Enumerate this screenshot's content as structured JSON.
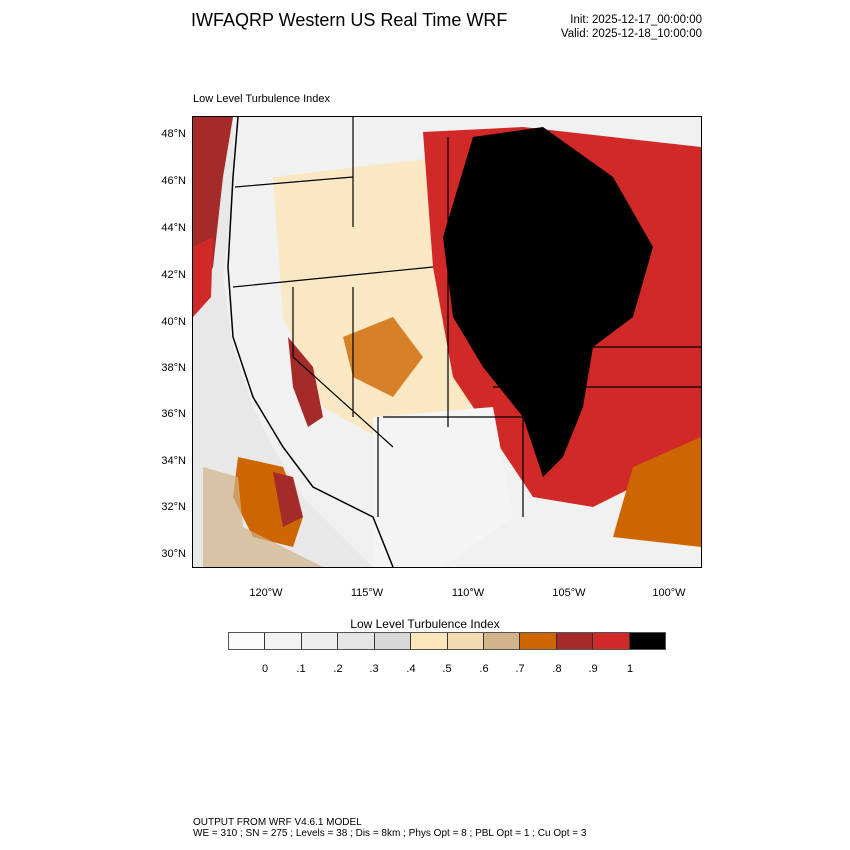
{
  "header": {
    "title": "IWFAQRP Western US Real Time WRF",
    "init": "Init: 2025-12-17_00:00:00",
    "valid": "Valid: 2025-12-18_10:00:00"
  },
  "plot": {
    "subtitle": "Low Level Turbulence Index",
    "lat_labels": [
      "48°N",
      "46°N",
      "44°N",
      "42°N",
      "40°N",
      "38°N",
      "36°N",
      "34°N",
      "32°N",
      "30°N"
    ],
    "lon_labels": [
      "120°W",
      "115°W",
      "110°W",
      "105°W",
      "100°W"
    ]
  },
  "colorbar": {
    "title": "Low Level Turbulence Index",
    "colors": [
      "#fafafa",
      "#f3f3f3",
      "#eeeeee",
      "#e5e5e5",
      "#d8d8d8",
      "#fde6b9",
      "#f3dbb1",
      "#d2b48c",
      "#cd6600",
      "#a52a2a",
      "#d12828",
      "#000000"
    ],
    "labels": [
      "0",
      ".1",
      ".2",
      ".3",
      ".4",
      ".5",
      ".6",
      ".7",
      ".8",
      ".9",
      "1"
    ]
  },
  "footer": {
    "line1": "OUTPUT FROM WRF V4.6.1 MODEL",
    "line2": "WE = 310 ; SN = 275 ; Levels = 38 ; Dis = 8km ; Phys Opt = 8 ; PBL Opt = 1 ; Cu Opt = 3"
  }
}
